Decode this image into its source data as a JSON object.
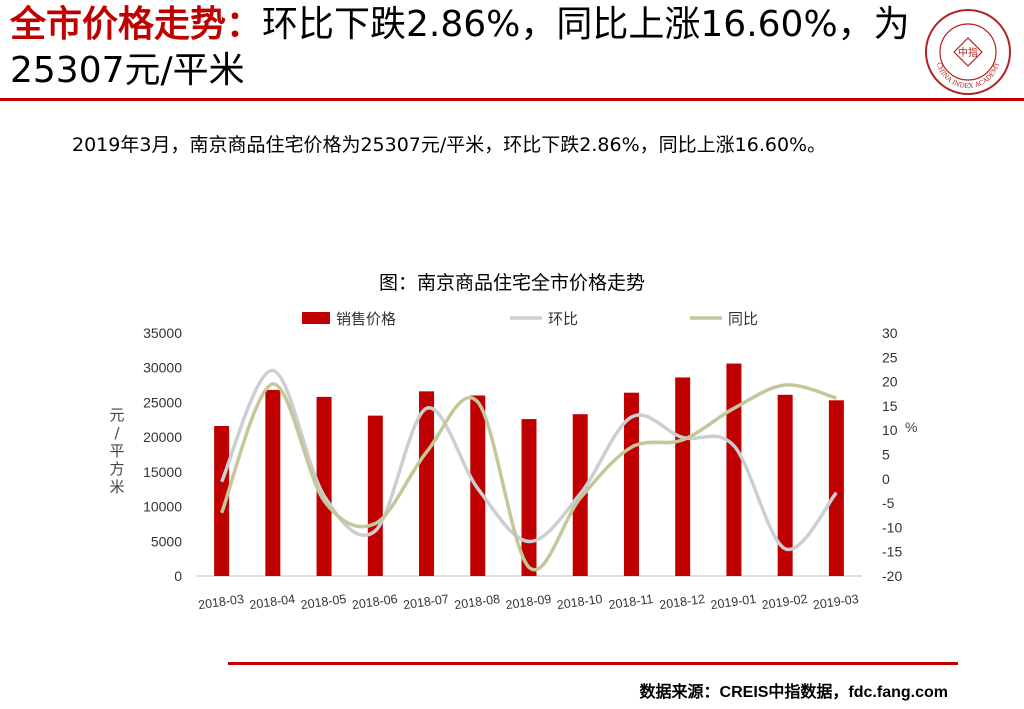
{
  "header": {
    "title_red": "全市价格走势：",
    "title_rest": "环比下跌2.86%，同比上涨16.60%，为25307元/平米"
  },
  "logo": {
    "text": "CHINA INDEX ACADEMY",
    "center": "中指"
  },
  "summary": "2019年3月，南京商品住宅价格为25307元/平米，环比下跌2.86%，同比上涨16.60%。",
  "chart_data": {
    "type": "bar",
    "title": "图：南京商品住宅全市价格走势",
    "categories": [
      "2018-03",
      "2018-04",
      "2018-05",
      "2018-06",
      "2018-07",
      "2018-08",
      "2018-09",
      "2018-10",
      "2018-11",
      "2018-12",
      "2019-01",
      "2019-02",
      "2019-03"
    ],
    "series": [
      {
        "name": "销售价格",
        "kind": "bar",
        "axis": "left",
        "color": "#c00000",
        "values": [
          21600,
          26800,
          25800,
          23100,
          26600,
          26000,
          22600,
          23300,
          26400,
          28600,
          30600,
          26100,
          25307
        ]
      },
      {
        "name": "环比",
        "kind": "line",
        "axis": "right",
        "color": "#c9cfd3",
        "values": [
          -0.6,
          22.3,
          -3.5,
          -10.7,
          14.5,
          -2.0,
          -12.9,
          -3.1,
          12.7,
          8.5,
          6.8,
          -14.4,
          -2.86
        ]
      },
      {
        "name": "同比",
        "kind": "line",
        "axis": "right",
        "color": "#c5c79a",
        "values": [
          -7.0,
          19.5,
          -4.5,
          -9.2,
          5.5,
          15.8,
          -18.2,
          -4.0,
          6.5,
          8.0,
          14.5,
          19.3,
          16.6
        ]
      }
    ],
    "left_axis": {
      "label": "元/平方米",
      "min": 0,
      "max": 35000,
      "ticks": [
        0,
        5000,
        10000,
        15000,
        20000,
        25000,
        30000,
        35000
      ]
    },
    "right_axis": {
      "label": "%",
      "min": -20,
      "max": 30,
      "ticks": [
        -20,
        -15,
        -10,
        -5,
        0,
        5,
        10,
        15,
        20,
        25,
        30
      ]
    },
    "legend_position": "top",
    "grid": false
  },
  "footer": "数据来源：CREIS中指数据，fdc.fang.com"
}
